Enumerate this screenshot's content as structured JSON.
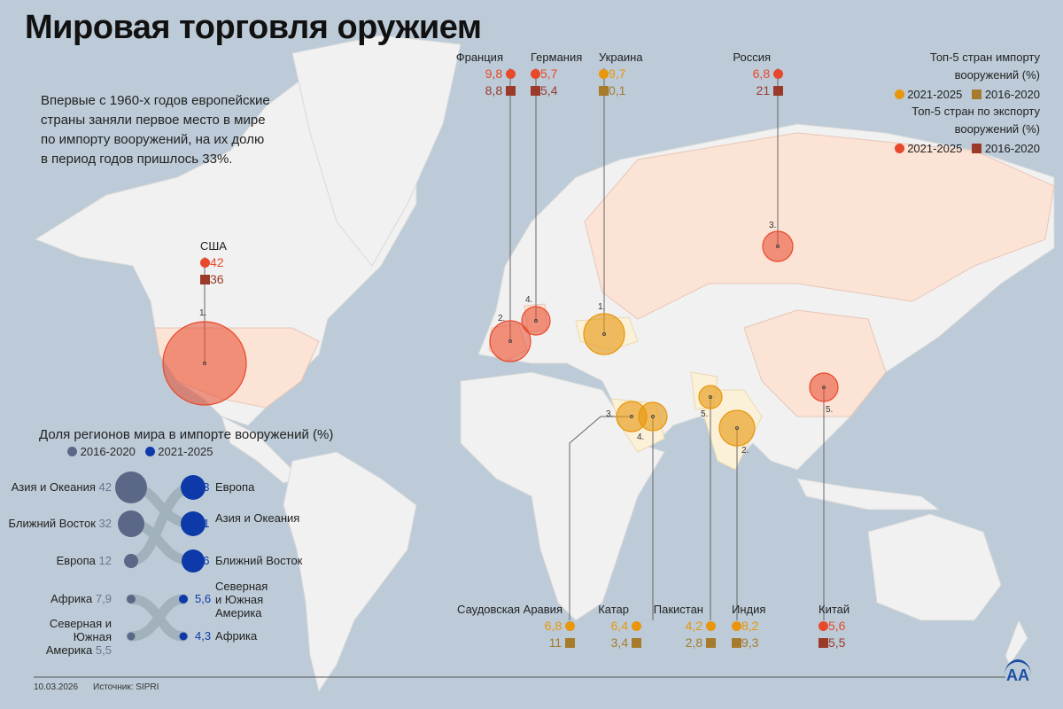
{
  "title": "Мировая торговля оружием",
  "intro": "Впервые с 1960-х годов европейские страны заняли первое место в мире по импорту вооружений, на их долю в период годов пришлось 33%.",
  "colors": {
    "import_recent": "#e8960c",
    "import_old": "#a77b2c",
    "export_recent": "#e8482b",
    "export_old": "#9b3a2a",
    "region_old": "#5a6786",
    "region_new": "#0d3aa8",
    "ocean": "#bccbd7",
    "land": "#f2f2f2"
  },
  "legend": {
    "import_title": "Топ-5 стран импорту вооружений (%)",
    "export_title": "Топ-5 стран по экспорту вооружений (%)",
    "period_recent": "2021-2025",
    "period_old": "2016-2020"
  },
  "countries": [
    {
      "name": "США",
      "type": "export",
      "rank": "1.",
      "v2021": "42",
      "v2016": "36"
    },
    {
      "name": "Франция",
      "type": "export",
      "rank": "2.",
      "v2021": "9,8",
      "v2016": "8,8"
    },
    {
      "name": "Германия",
      "type": "export",
      "rank": "4.",
      "v2021": "5,7",
      "v2016": "5,4"
    },
    {
      "name": "Украина",
      "type": "import",
      "rank": "1.",
      "v2021": "9,7",
      "v2016": "0,1"
    },
    {
      "name": "Россия",
      "type": "export",
      "rank": "3.",
      "v2021": "6,8",
      "v2016": "21"
    },
    {
      "name": "Саудовская Аравия",
      "type": "import",
      "rank": "3.",
      "v2021": "6,8",
      "v2016": "11"
    },
    {
      "name": "Катар",
      "type": "import",
      "rank": "4.",
      "v2021": "6,4",
      "v2016": "3,4"
    },
    {
      "name": "Пакистан",
      "type": "import",
      "rank": "5.",
      "v2021": "4,2",
      "v2016": "2,8"
    },
    {
      "name": "Индия",
      "type": "import",
      "rank": "2.",
      "v2021": "8,2",
      "v2016": "9,3"
    },
    {
      "name": "Китай",
      "type": "export",
      "rank": "5.",
      "v2021": "5,6",
      "v2016": "5,5"
    }
  ],
  "regions": {
    "title": "Доля регионов мира в импорте вооружений (%)",
    "legend_old": "2016-2020",
    "legend_new": "2021-2025",
    "old": [
      {
        "label": "Азия и Океания",
        "value": "42"
      },
      {
        "label": "Ближний Восток",
        "value": "32"
      },
      {
        "label": "Европа",
        "value": "12"
      },
      {
        "label": "Африка",
        "value": "7,9"
      },
      {
        "label": "Северная и Южная Америка",
        "value": "5,5"
      }
    ],
    "new": [
      {
        "label": "Европа",
        "value": "33"
      },
      {
        "label": "Азия и Океания",
        "value": "31"
      },
      {
        "label": "Ближний Восток",
        "value": "26"
      },
      {
        "label": "Северная и Южная Америка",
        "value": "5,6"
      },
      {
        "label": "Африка",
        "value": "4,3"
      }
    ]
  },
  "footer": {
    "date": "10.03.2026",
    "source": "Источник: SIPRI",
    "logo": "AA"
  }
}
